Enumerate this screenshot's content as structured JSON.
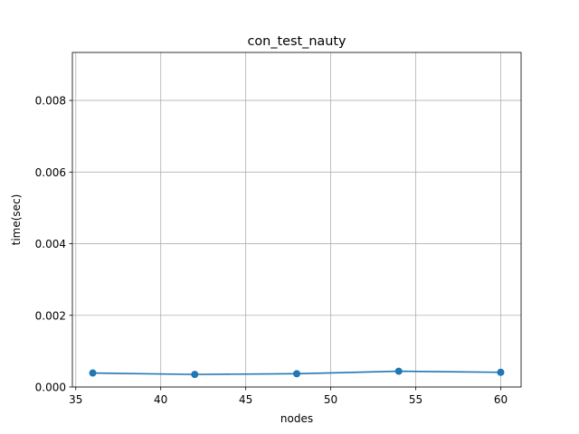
{
  "chart_data": {
    "type": "line",
    "title": "con_test_nauty",
    "xlabel": "nodes",
    "ylabel": "time(sec)",
    "x": [
      36,
      42,
      48,
      54,
      60
    ],
    "series": [
      {
        "values": [
          0.00039,
          0.00035,
          0.00037,
          0.00044,
          0.00041
        ],
        "color": "#1f77b4",
        "marker": "circle"
      }
    ],
    "xlim": [
      34.8,
      61.2
    ],
    "ylim": [
      0,
      0.00934
    ],
    "xticks": [
      35,
      40,
      45,
      50,
      55,
      60
    ],
    "xtick_labels": [
      "35",
      "40",
      "45",
      "50",
      "55",
      "60"
    ],
    "yticks": [
      0,
      0.002,
      0.004,
      0.006,
      0.008
    ],
    "ytick_labels": [
      "0.000",
      "0.002",
      "0.004",
      "0.006",
      "0.008"
    ],
    "grid": true
  }
}
